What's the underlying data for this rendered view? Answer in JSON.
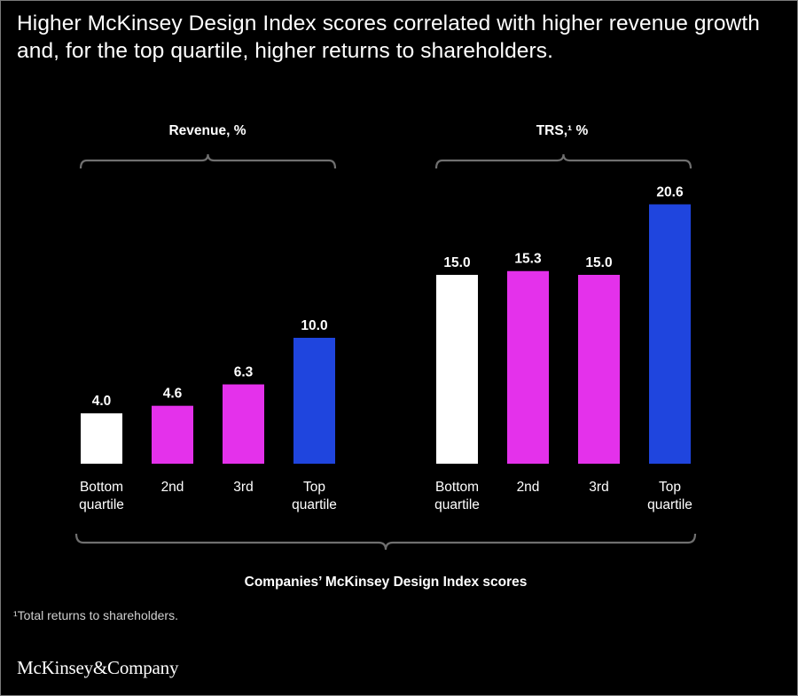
{
  "title": "Higher McKinsey Design Index scores correlated with higher revenue growth and, for the top quartile, higher returns to shareholders.",
  "footnote": "¹Total returns to shareholders.",
  "logo": "McKinsey&Company",
  "colors": {
    "background": "#000000",
    "bottom": "#ffffff",
    "middle": "#e431eb",
    "top": "#1f45de",
    "bracket": "#6f6f6f"
  },
  "chart_data": {
    "type": "bar",
    "xlabel": "Companies’ McKinsey Design Index scores",
    "categories": [
      [
        "Bottom",
        "quartile"
      ],
      [
        "2nd"
      ],
      [
        "3rd"
      ],
      [
        "Top",
        "quartile"
      ]
    ],
    "panels": [
      {
        "title": "Revenue, %",
        "values": [
          4.0,
          4.6,
          6.3,
          10.0
        ],
        "labels": [
          "4.0",
          "4.6",
          "6.3",
          "10.0"
        ]
      },
      {
        "title": "TRS,¹ %",
        "values": [
          15.0,
          15.3,
          15.0,
          20.6
        ],
        "labels": [
          "15.0",
          "15.3",
          "15.0",
          "20.6"
        ]
      }
    ],
    "bar_colors": [
      "bottom",
      "middle",
      "middle",
      "top"
    ],
    "grid": false,
    "legend": "none"
  }
}
